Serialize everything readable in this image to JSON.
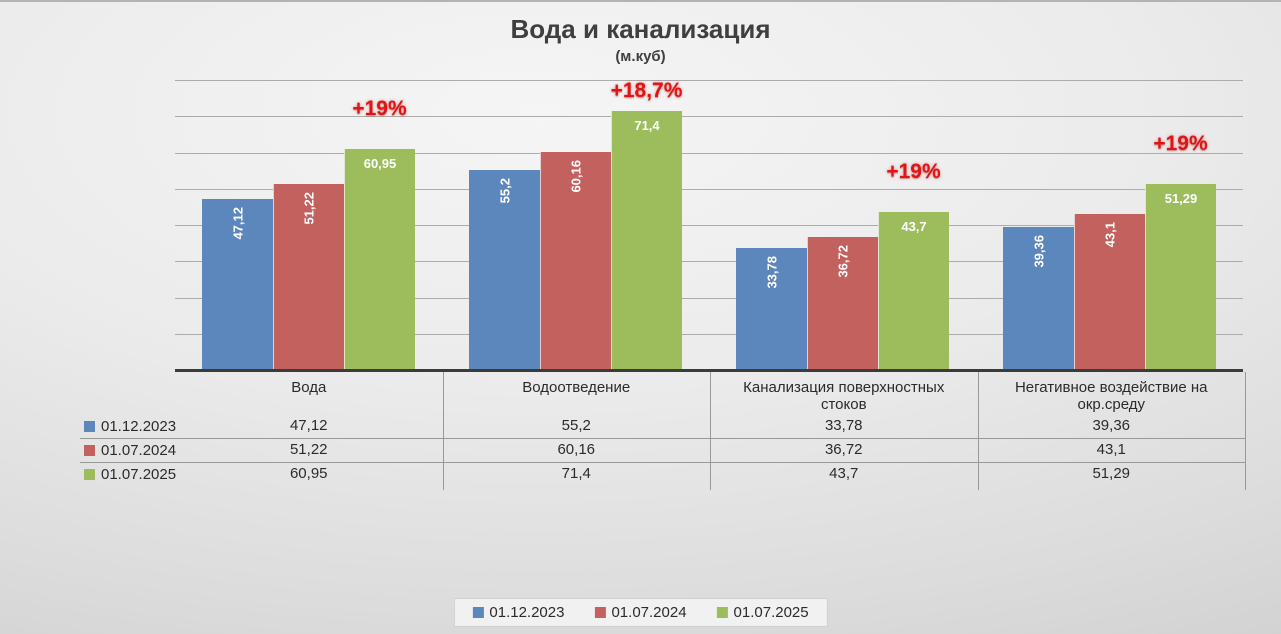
{
  "title": "Вода и канализация",
  "subtitle": "(м.куб)",
  "chart_data": {
    "type": "bar",
    "title": "Вода и канализация",
    "subtitle": "(м.куб)",
    "unit": "м.куб",
    "categories": [
      "Вода",
      "Водоотведение",
      "Канализация поверхностных стоков",
      "Негативное воздействие на окр.среду"
    ],
    "series": [
      {
        "name": "01.12.2023",
        "color": "#5B87BD",
        "values": [
          47.12,
          55.2,
          33.78,
          39.36
        ],
        "label_rotated": true
      },
      {
        "name": "01.07.2024",
        "color": "#C2615D",
        "values": [
          51.22,
          60.16,
          36.72,
          43.1
        ],
        "label_rotated": true
      },
      {
        "name": "01.07.2025",
        "color": "#9DBD5C",
        "values": [
          60.95,
          71.4,
          43.7,
          51.29
        ],
        "label_rotated": false
      }
    ],
    "annotations": [
      {
        "category_index": 0,
        "text": "+19%",
        "gap_above_bar": 28
      },
      {
        "category_index": 1,
        "text": "+18,7%",
        "gap_above_bar": 8
      },
      {
        "category_index": 2,
        "text": "+19%",
        "gap_above_bar": 28
      },
      {
        "category_index": 3,
        "text": "+19%",
        "gap_above_bar": 28
      }
    ],
    "annotation_color": "#E01414",
    "ylim": [
      0,
      80
    ],
    "grid_step": 10,
    "grid": true,
    "legend_position": "bottom",
    "value_decimal_separator": ","
  },
  "data_table": {
    "column_headers": [
      "Вода",
      "Водоотведение",
      "Канализация поверхностных стоков",
      "Негативное воздействие на окр.среду"
    ],
    "row_labels": [
      "01.12.2023",
      "01.07.2024",
      "01.07.2025"
    ],
    "rows": [
      [
        "47,12",
        "55,2",
        "33,78",
        "39,36"
      ],
      [
        "51,22",
        "60,16",
        "36,72",
        "43,1"
      ],
      [
        "60,95",
        "71,4",
        "43,7",
        "51,29"
      ]
    ]
  },
  "legend": {
    "items": [
      "01.12.2023",
      "01.07.2024",
      "01.07.2025"
    ]
  }
}
